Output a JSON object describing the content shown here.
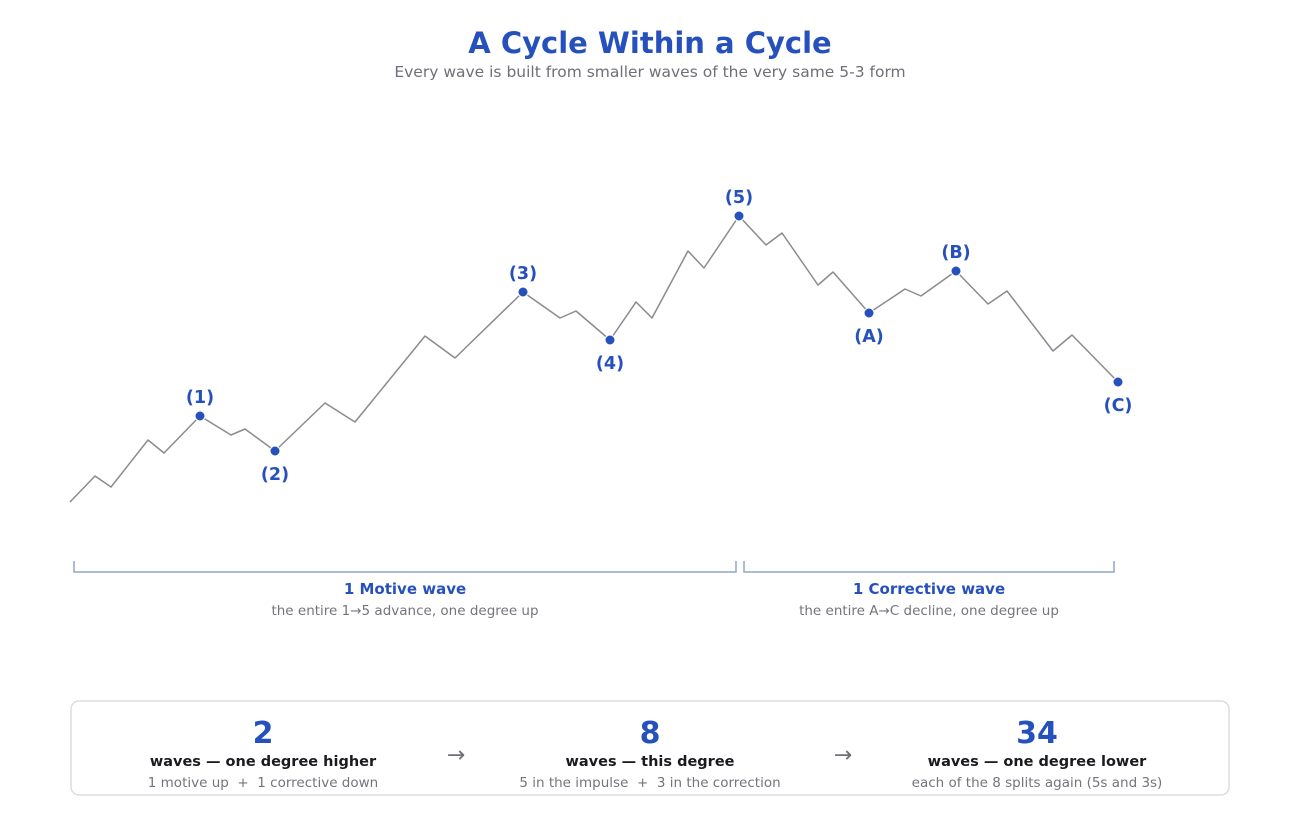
{
  "header": {
    "title": "A Cycle Within a Cycle",
    "subtitle": "Every wave is built from smaller waves of the very same 5-3 form"
  },
  "colors": {
    "accent": "#2651bd",
    "line": "#8a8a90",
    "bracket": "#8fa6c7",
    "muted_text": "#74747c",
    "panel_border": "#dcdce2"
  },
  "wave_labels": {
    "w1": "(1)",
    "w2": "(2)",
    "w3": "(3)",
    "w4": "(4)",
    "w5": "(5)",
    "wA": "(A)",
    "wB": "(B)",
    "wC": "(C)"
  },
  "brackets": {
    "motive": {
      "title": "1 Motive wave",
      "subtitle": "the entire 1→5 advance, one degree up"
    },
    "corrective": {
      "title": "1 Corrective wave",
      "subtitle": "the entire A→C decline, one degree up"
    }
  },
  "stats": {
    "items": [
      {
        "number": "2",
        "label": "waves — one degree higher",
        "desc": "1 motive up  +  1 corrective down"
      },
      {
        "number": "8",
        "label": "waves — this degree",
        "desc": "5 in the impulse  +  3 in the correction"
      },
      {
        "number": "34",
        "label": "waves — one degree lower",
        "desc": "each of the 8 splits again (5s and 3s)"
      }
    ],
    "arrow": "→"
  }
}
